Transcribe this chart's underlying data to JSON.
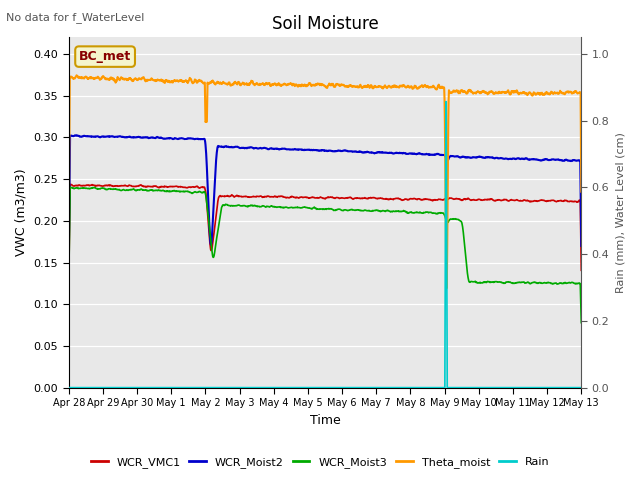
{
  "title": "Soil Moisture",
  "top_left_text": "No data for f_WaterLevel",
  "xlabel": "Time",
  "ylabel_left": "VWC (m3/m3)",
  "ylabel_right": "Rain (mm), Water Level (cm)",
  "ylim_left": [
    0.0,
    0.42
  ],
  "ylim_right": [
    0.0,
    1.05
  ],
  "yticks_left": [
    0.0,
    0.05,
    0.1,
    0.15,
    0.2,
    0.25,
    0.3,
    0.35,
    0.4
  ],
  "yticks_right": [
    0.0,
    0.2,
    0.4,
    0.6,
    0.8,
    1.0
  ],
  "xtick_labels": [
    "Apr 28",
    "Apr 29",
    "Apr 30",
    "May 1",
    "May 2",
    "May 3",
    "May 4",
    "May 5",
    "May 6",
    "May 7",
    "May 8",
    "May 9",
    "May 10",
    "May 11",
    "May 12",
    "May 13"
  ],
  "bg_color": "#e8e8e8",
  "legend": [
    {
      "label": "WCR_VMC1",
      "color": "#cc0000"
    },
    {
      "label": "WCR_Moist2",
      "color": "#0000cc"
    },
    {
      "label": "WCR_Moist3",
      "color": "#00aa00"
    },
    {
      "label": "Theta_moist",
      "color": "#ff9900"
    },
    {
      "label": "Rain",
      "color": "#00cccc"
    }
  ],
  "annotation_box": {
    "text": "BC_met"
  }
}
